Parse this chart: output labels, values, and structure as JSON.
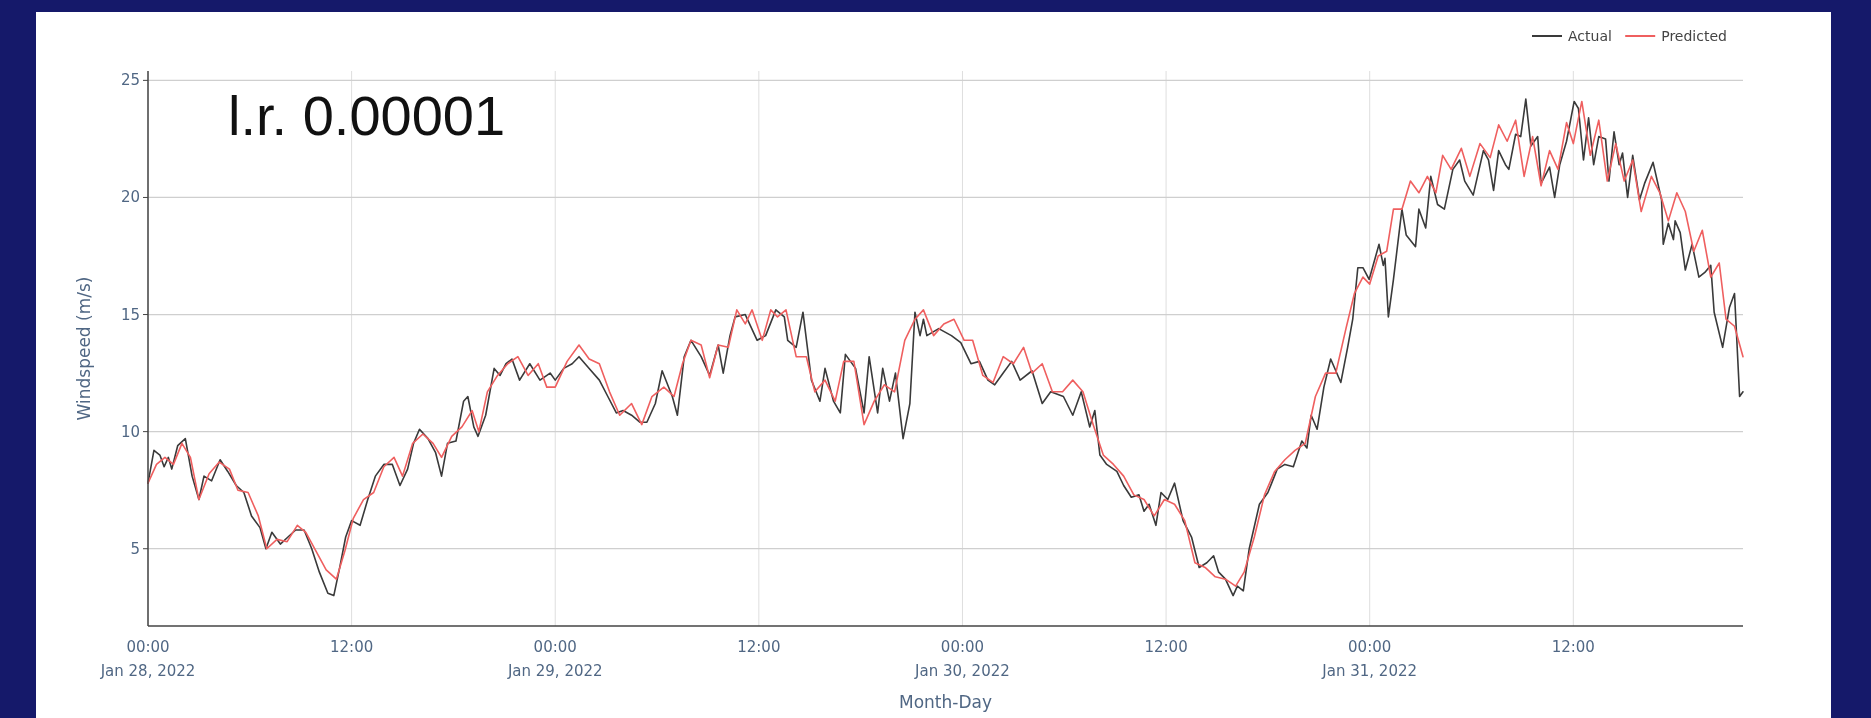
{
  "chart_data": {
    "type": "line",
    "xlabel": "Month-Day",
    "ylabel": "Windspeed (m/s)",
    "annotations": [
      "l.r. 0.00001"
    ],
    "xlim": [
      "2022-01-28T00:00",
      "2022-01-31T22:00"
    ],
    "xticks": [
      {
        "value": "2022-01-28T00:00",
        "label": "00:00\nJan 28, 2022"
      },
      {
        "value": "2022-01-28T12:00",
        "label": "12:00"
      },
      {
        "value": "2022-01-29T00:00",
        "label": "00:00\nJan 29, 2022"
      },
      {
        "value": "2022-01-29T12:00",
        "label": "12:00"
      },
      {
        "value": "2022-01-30T00:00",
        "label": "00:00\nJan 30, 2022"
      },
      {
        "value": "2022-01-30T12:00",
        "label": "12:00"
      },
      {
        "value": "2022-01-31T00:00",
        "label": "00:00\nJan 31, 2022"
      },
      {
        "value": "2022-01-31T12:00",
        "label": "12:00"
      }
    ],
    "ylim": [
      1.7,
      25.4
    ],
    "yticks": [
      5,
      10,
      15,
      20,
      25
    ],
    "grid": true,
    "legend": "top right",
    "line_style": "solid",
    "series": [
      {
        "name": "Actual",
        "color": "#3a3a3a",
        "x": [
          "2022-01-28T00:00",
          "2022-01-28T00:21",
          "2022-01-28T00:42",
          "2022-01-28T00:57",
          "2022-01-28T01:12",
          "2022-01-28T01:24",
          "2022-01-28T01:45",
          "2022-01-28T02:12",
          "2022-01-28T02:36",
          "2022-01-28T03:00",
          "2022-01-28T03:18",
          "2022-01-28T03:45",
          "2022-01-28T04:15",
          "2022-01-28T04:42",
          "2022-01-28T05:12",
          "2022-01-28T05:39",
          "2022-01-28T06:06",
          "2022-01-28T06:36",
          "2022-01-28T06:57",
          "2022-01-28T07:18",
          "2022-01-28T07:48",
          "2022-01-28T08:15",
          "2022-01-28T08:42",
          "2022-01-28T09:12",
          "2022-01-28T09:39",
          "2022-01-28T10:06",
          "2022-01-28T10:36",
          "2022-01-28T10:57",
          "2022-01-28T11:18",
          "2022-01-28T11:39",
          "2022-01-28T12:00",
          "2022-01-28T12:30",
          "2022-01-28T12:57",
          "2022-01-28T13:24",
          "2022-01-28T13:54",
          "2022-01-28T14:24",
          "2022-01-28T14:51",
          "2022-01-28T15:18",
          "2022-01-28T15:39",
          "2022-01-28T16:00",
          "2022-01-28T16:30",
          "2022-01-28T16:57",
          "2022-01-28T17:18",
          "2022-01-28T17:39",
          "2022-01-28T18:09",
          "2022-01-28T18:36",
          "2022-01-28T18:51",
          "2022-01-28T19:12",
          "2022-01-28T19:27",
          "2022-01-28T19:54",
          "2022-01-28T20:24",
          "2022-01-28T20:45",
          "2022-01-28T21:06",
          "2022-01-28T21:27",
          "2022-01-28T21:54",
          "2022-01-28T22:30",
          "2022-01-28T23:06",
          "2022-01-28T23:42",
          "2022-01-29T00:00",
          "2022-01-29T00:30",
          "2022-01-29T01:00",
          "2022-01-29T01:24",
          "2022-01-29T02:00",
          "2022-01-29T02:36",
          "2022-01-29T03:06",
          "2022-01-29T03:36",
          "2022-01-29T04:00",
          "2022-01-29T04:30",
          "2022-01-29T05:00",
          "2022-01-29T05:24",
          "2022-01-29T05:54",
          "2022-01-29T06:18",
          "2022-01-29T06:54",
          "2022-01-29T07:12",
          "2022-01-29T07:36",
          "2022-01-29T08:00",
          "2022-01-29T08:36",
          "2022-01-29T09:06",
          "2022-01-29T09:36",
          "2022-01-29T09:54",
          "2022-01-29T10:18",
          "2022-01-29T10:36",
          "2022-01-29T11:12",
          "2022-01-29T11:54",
          "2022-01-29T12:24",
          "2022-01-29T13:00",
          "2022-01-29T13:30",
          "2022-01-29T13:42",
          "2022-01-29T14:12",
          "2022-01-29T14:36",
          "2022-01-29T15:06",
          "2022-01-29T15:36",
          "2022-01-29T15:54",
          "2022-01-29T16:24",
          "2022-01-29T16:48",
          "2022-01-29T17:06",
          "2022-01-29T17:42",
          "2022-01-29T18:12",
          "2022-01-29T18:30",
          "2022-01-29T19:00",
          "2022-01-29T19:18",
          "2022-01-29T19:42",
          "2022-01-29T20:03",
          "2022-01-29T20:30",
          "2022-01-29T20:54",
          "2022-01-29T21:12",
          "2022-01-29T21:30",
          "2022-01-29T21:42",
          "2022-01-29T21:54",
          "2022-01-29T22:36",
          "2022-01-29T23:21",
          "2022-01-29T23:54",
          "2022-01-30T00:30",
          "2022-01-30T01:00",
          "2022-01-30T01:30",
          "2022-01-30T01:54",
          "2022-01-30T02:24",
          "2022-01-30T02:54",
          "2022-01-30T03:24",
          "2022-01-30T04:06",
          "2022-01-30T04:42",
          "2022-01-30T05:12",
          "2022-01-30T05:57",
          "2022-01-30T06:30",
          "2022-01-30T07:00",
          "2022-01-30T07:30",
          "2022-01-30T07:48",
          "2022-01-30T08:06",
          "2022-01-30T08:30",
          "2022-01-30T09:06",
          "2022-01-30T09:30",
          "2022-01-30T09:57",
          "2022-01-30T10:24",
          "2022-01-30T10:42",
          "2022-01-30T11:00",
          "2022-01-30T11:24",
          "2022-01-30T11:42",
          "2022-01-30T12:06",
          "2022-01-30T12:30",
          "2022-01-30T13:00",
          "2022-01-30T13:30",
          "2022-01-30T13:57",
          "2022-01-30T14:24",
          "2022-01-30T14:48",
          "2022-01-30T15:06",
          "2022-01-30T15:30",
          "2022-01-30T15:57",
          "2022-01-30T16:12",
          "2022-01-30T16:33",
          "2022-01-30T16:54",
          "2022-01-30T17:30",
          "2022-01-30T18:00",
          "2022-01-30T18:33",
          "2022-01-30T19:00",
          "2022-01-30T19:30",
          "2022-01-30T20:00",
          "2022-01-30T20:18",
          "2022-01-30T20:33",
          "2022-01-30T20:54",
          "2022-01-30T21:18",
          "2022-01-30T21:42",
          "2022-01-30T22:18",
          "2022-01-30T22:42",
          "2022-01-30T23:00",
          "2022-01-30T23:18",
          "2022-01-30T23:36",
          "2022-01-30T23:58",
          "2022-01-31T00:33",
          "2022-01-31T00:48",
          "2022-01-31T00:54",
          "2022-01-31T01:06",
          "2022-01-31T01:24",
          "2022-01-31T01:54",
          "2022-01-31T02:09",
          "2022-01-31T02:42",
          "2022-01-31T02:54",
          "2022-01-31T03:18",
          "2022-01-31T03:36",
          "2022-01-31T04:00",
          "2022-01-31T04:24",
          "2022-01-31T04:54",
          "2022-01-31T05:18",
          "2022-01-31T05:36",
          "2022-01-31T06:06",
          "2022-01-31T06:42",
          "2022-01-31T07:00",
          "2022-01-31T07:18",
          "2022-01-31T07:36",
          "2022-01-31T08:00",
          "2022-01-31T08:12",
          "2022-01-31T08:36",
          "2022-01-31T08:54",
          "2022-01-31T09:12",
          "2022-01-31T09:30",
          "2022-01-31T09:54",
          "2022-01-31T10:06",
          "2022-01-31T10:36",
          "2022-01-31T10:54",
          "2022-01-31T11:12",
          "2022-01-31T11:36",
          "2022-01-31T12:03",
          "2022-01-31T12:18",
          "2022-01-31T12:36",
          "2022-01-31T12:54",
          "2022-01-31T13:12",
          "2022-01-31T13:30",
          "2022-01-31T13:54",
          "2022-01-31T14:06",
          "2022-01-31T14:24",
          "2022-01-31T14:42",
          "2022-01-31T14:54",
          "2022-01-31T15:12",
          "2022-01-31T15:30",
          "2022-01-31T15:54",
          "2022-01-31T16:12",
          "2022-01-31T16:42",
          "2022-01-31T17:12",
          "2022-01-31T17:18",
          "2022-01-31T17:36",
          "2022-01-31T17:54",
          "2022-01-31T18:00",
          "2022-01-31T18:18",
          "2022-01-31T18:36",
          "2022-01-31T19:00",
          "2022-01-31T19:24",
          "2022-01-31T19:45",
          "2022-01-31T20:06",
          "2022-01-31T20:18",
          "2022-01-31T20:48",
          "2022-01-31T21:12",
          "2022-01-31T21:30",
          "2022-01-31T21:48",
          "2022-01-31T22:00"
        ],
        "values": [
          7.8,
          9.2,
          9.0,
          8.5,
          8.9,
          8.4,
          9.4,
          9.7,
          8.1,
          7.1,
          8.1,
          7.9,
          8.8,
          8.3,
          7.7,
          7.4,
          6.4,
          5.9,
          5.0,
          5.7,
          5.2,
          5.5,
          5.8,
          5.8,
          5.0,
          4.0,
          3.1,
          3.0,
          4.2,
          5.5,
          6.2,
          6.0,
          7.1,
          8.1,
          8.6,
          8.6,
          7.7,
          8.4,
          9.5,
          10.1,
          9.7,
          9.1,
          8.1,
          9.5,
          9.6,
          11.3,
          11.5,
          10.2,
          9.8,
          10.7,
          12.7,
          12.4,
          12.9,
          13.1,
          12.2,
          12.9,
          12.2,
          12.5,
          12.2,
          12.7,
          12.9,
          13.2,
          12.7,
          12.2,
          11.5,
          10.8,
          10.9,
          10.7,
          10.4,
          10.4,
          11.2,
          12.6,
          11.5,
          10.7,
          13.2,
          13.9,
          13.2,
          12.4,
          13.7,
          12.5,
          14.1,
          14.9,
          15.0,
          13.9,
          14.1,
          15.2,
          14.9,
          13.9,
          13.6,
          15.1,
          12.2,
          11.3,
          12.7,
          11.3,
          10.8,
          13.3,
          12.7,
          10.8,
          13.2,
          10.8,
          12.7,
          11.3,
          12.5,
          9.7,
          11.2,
          15.1,
          14.1,
          14.8,
          14.1,
          14.4,
          14.1,
          13.8,
          12.9,
          13.0,
          12.2,
          12.0,
          12.5,
          13.0,
          12.2,
          12.6,
          11.2,
          11.7,
          11.5,
          10.7,
          11.7,
          10.2,
          10.9,
          9.0,
          8.6,
          8.3,
          7.7,
          7.2,
          7.3,
          6.6,
          6.9,
          6.0,
          7.4,
          7.1,
          7.8,
          6.2,
          5.5,
          4.2,
          4.4,
          4.7,
          4.0,
          3.7,
          3.0,
          3.4,
          3.2,
          5.0,
          6.9,
          7.4,
          8.4,
          8.6,
          8.5,
          9.6,
          9.3,
          10.7,
          10.1,
          11.9,
          13.1,
          12.1,
          13.6,
          14.8,
          17.0,
          17.0,
          16.5,
          18.0,
          17.1,
          17.4,
          14.9,
          16.5,
          19.5,
          18.4,
          17.9,
          19.5,
          18.7,
          20.9,
          19.7,
          19.5,
          21.2,
          21.6,
          20.7,
          20.1,
          22.0,
          21.6,
          20.3,
          22.0,
          21.4,
          21.2,
          22.7,
          22.6,
          24.2,
          22.2,
          22.6,
          20.6,
          21.3,
          20.0,
          21.4,
          22.4,
          24.1,
          23.8,
          21.6,
          23.4,
          21.4,
          22.6,
          22.5,
          20.7,
          22.8,
          21.4,
          21.9,
          20.0,
          21.8,
          19.9,
          20.6,
          21.5,
          19.9,
          18.0,
          18.9,
          18.2,
          19.0,
          18.5,
          16.9,
          18.0,
          16.6,
          16.8,
          17.1,
          15.1,
          13.6,
          15.3,
          15.9,
          11.5,
          11.7
        ]
      },
      {
        "name": "Predicted",
        "color": "#ef5f5f",
        "x": [
          "2022-01-28T00:00",
          "2022-01-28T00:30",
          "2022-01-28T01:00",
          "2022-01-28T01:30",
          "2022-01-28T02:00",
          "2022-01-28T02:30",
          "2022-01-28T03:00",
          "2022-01-28T03:36",
          "2022-01-28T04:12",
          "2022-01-28T04:48",
          "2022-01-28T05:18",
          "2022-01-28T05:54",
          "2022-01-28T06:30",
          "2022-01-28T07:00",
          "2022-01-28T07:36",
          "2022-01-28T08:12",
          "2022-01-28T08:48",
          "2022-01-28T09:18",
          "2022-01-28T09:54",
          "2022-01-28T10:30",
          "2022-01-28T11:06",
          "2022-01-28T11:36",
          "2022-01-28T12:06",
          "2022-01-28T12:42",
          "2022-01-28T13:18",
          "2022-01-28T13:54",
          "2022-01-28T14:30",
          "2022-01-28T15:00",
          "2022-01-28T15:36",
          "2022-01-28T16:12",
          "2022-01-28T16:48",
          "2022-01-28T17:18",
          "2022-01-28T17:54",
          "2022-01-28T18:30",
          "2022-01-28T19:06",
          "2022-01-28T19:30",
          "2022-01-28T20:00",
          "2022-01-28T20:36",
          "2022-01-28T21:12",
          "2022-01-28T21:48",
          "2022-01-28T22:24",
          "2022-01-28T23:00",
          "2022-01-28T23:30",
          "2022-01-29T00:00",
          "2022-01-29T00:42",
          "2022-01-29T01:24",
          "2022-01-29T02:00",
          "2022-01-29T02:36",
          "2022-01-29T03:12",
          "2022-01-29T03:48",
          "2022-01-29T04:30",
          "2022-01-29T05:06",
          "2022-01-29T05:42",
          "2022-01-29T06:24",
          "2022-01-29T07:00",
          "2022-01-29T07:30",
          "2022-01-29T08:00",
          "2022-01-29T08:36",
          "2022-01-29T09:06",
          "2022-01-29T09:36",
          "2022-01-29T10:12",
          "2022-01-29T10:42",
          "2022-01-29T11:12",
          "2022-01-29T11:36",
          "2022-01-29T12:12",
          "2022-01-29T12:42",
          "2022-01-29T13:06",
          "2022-01-29T13:36",
          "2022-01-29T14:12",
          "2022-01-29T14:48",
          "2022-01-29T15:18",
          "2022-01-29T15:54",
          "2022-01-29T16:30",
          "2022-01-29T17:00",
          "2022-01-29T17:36",
          "2022-01-29T18:12",
          "2022-01-29T18:48",
          "2022-01-29T19:24",
          "2022-01-29T20:00",
          "2022-01-29T20:36",
          "2022-01-29T21:12",
          "2022-01-29T21:42",
          "2022-01-29T22:18",
          "2022-01-29T22:54",
          "2022-01-29T23:30",
          "2022-01-30T00:06",
          "2022-01-30T00:36",
          "2022-01-30T01:12",
          "2022-01-30T01:48",
          "2022-01-30T02:24",
          "2022-01-30T03:00",
          "2022-01-30T03:36",
          "2022-01-30T04:06",
          "2022-01-30T04:42",
          "2022-01-30T05:18",
          "2022-01-30T05:54",
          "2022-01-30T06:30",
          "2022-01-30T07:06",
          "2022-01-30T07:42",
          "2022-01-30T08:18",
          "2022-01-30T08:54",
          "2022-01-30T09:30",
          "2022-01-30T10:06",
          "2022-01-30T10:42",
          "2022-01-30T11:18",
          "2022-01-30T11:54",
          "2022-01-30T12:30",
          "2022-01-30T13:06",
          "2022-01-30T13:42",
          "2022-01-30T14:18",
          "2022-01-30T14:54",
          "2022-01-30T15:30",
          "2022-01-30T16:06",
          "2022-01-30T16:36",
          "2022-01-30T17:12",
          "2022-01-30T17:48",
          "2022-01-30T18:24",
          "2022-01-30T19:00",
          "2022-01-30T19:36",
          "2022-01-30T20:12",
          "2022-01-30T20:48",
          "2022-01-30T21:24",
          "2022-01-30T22:00",
          "2022-01-30T22:36",
          "2022-01-30T23:06",
          "2022-01-30T23:36",
          "2022-01-31T00:00",
          "2022-01-31T00:30",
          "2022-01-31T01:00",
          "2022-01-31T01:24",
          "2022-01-31T01:54",
          "2022-01-31T02:24",
          "2022-01-31T02:54",
          "2022-01-31T03:24",
          "2022-01-31T03:54",
          "2022-01-31T04:18",
          "2022-01-31T04:48",
          "2022-01-31T05:24",
          "2022-01-31T05:54",
          "2022-01-31T06:30",
          "2022-01-31T07:06",
          "2022-01-31T07:36",
          "2022-01-31T08:06",
          "2022-01-31T08:36",
          "2022-01-31T09:06",
          "2022-01-31T09:36",
          "2022-01-31T10:06",
          "2022-01-31T10:36",
          "2022-01-31T11:06",
          "2022-01-31T11:36",
          "2022-01-31T12:00",
          "2022-01-31T12:30",
          "2022-01-31T13:00",
          "2022-01-31T13:30",
          "2022-01-31T14:00",
          "2022-01-31T14:30",
          "2022-01-31T15:00",
          "2022-01-31T15:30",
          "2022-01-31T16:00",
          "2022-01-31T16:36",
          "2022-01-31T17:06",
          "2022-01-31T17:36",
          "2022-01-31T18:06",
          "2022-01-31T18:36",
          "2022-01-31T19:06",
          "2022-01-31T19:36",
          "2022-01-31T20:06",
          "2022-01-31T20:36",
          "2022-01-31T21:00",
          "2022-01-31T21:30",
          "2022-01-31T22:00"
        ],
        "values": [
          7.8,
          8.6,
          8.9,
          8.6,
          9.5,
          8.9,
          7.1,
          8.2,
          8.7,
          8.4,
          7.5,
          7.4,
          6.4,
          5.0,
          5.4,
          5.3,
          6.0,
          5.7,
          4.9,
          4.1,
          3.7,
          4.9,
          6.3,
          7.1,
          7.4,
          8.5,
          8.9,
          8.1,
          9.5,
          9.9,
          9.5,
          8.9,
          9.8,
          10.2,
          10.9,
          10.0,
          11.7,
          12.4,
          12.9,
          13.2,
          12.4,
          12.9,
          11.9,
          11.9,
          13.0,
          13.7,
          13.1,
          12.9,
          11.7,
          10.7,
          11.2,
          10.3,
          11.5,
          11.9,
          11.5,
          12.9,
          13.9,
          13.7,
          12.3,
          13.7,
          13.6,
          15.2,
          14.6,
          15.2,
          13.9,
          15.2,
          14.9,
          15.2,
          13.2,
          13.2,
          11.7,
          12.2,
          11.3,
          13.0,
          13.0,
          10.3,
          11.3,
          12.0,
          11.7,
          13.9,
          14.8,
          15.2,
          14.1,
          14.6,
          14.8,
          13.9,
          13.9,
          12.4,
          12.1,
          13.2,
          12.9,
          13.6,
          12.5,
          12.9,
          11.7,
          11.7,
          12.2,
          11.7,
          10.3,
          9.0,
          8.6,
          8.1,
          7.3,
          7.1,
          6.4,
          7.1,
          6.9,
          6.2,
          4.4,
          4.2,
          3.8,
          3.7,
          3.4,
          4.0,
          5.5,
          7.3,
          8.3,
          8.8,
          9.2,
          9.5,
          11.5,
          12.5,
          12.5,
          14.4,
          15.9,
          16.6,
          16.3,
          17.5,
          17.7,
          19.5,
          19.5,
          20.7,
          20.2,
          20.9,
          20.2,
          21.8,
          21.2,
          22.1,
          20.9,
          22.3,
          21.7,
          23.1,
          22.4,
          23.3,
          20.9,
          22.6,
          20.5,
          22.0,
          21.2,
          23.2,
          22.3,
          24.1,
          21.8,
          23.3,
          20.7,
          22.3,
          20.7,
          21.6,
          19.4,
          20.9,
          20.2,
          19.0,
          20.2,
          19.4,
          17.7,
          18.6,
          16.6,
          17.2,
          14.8,
          14.5,
          13.2
        ]
      }
    ]
  }
}
